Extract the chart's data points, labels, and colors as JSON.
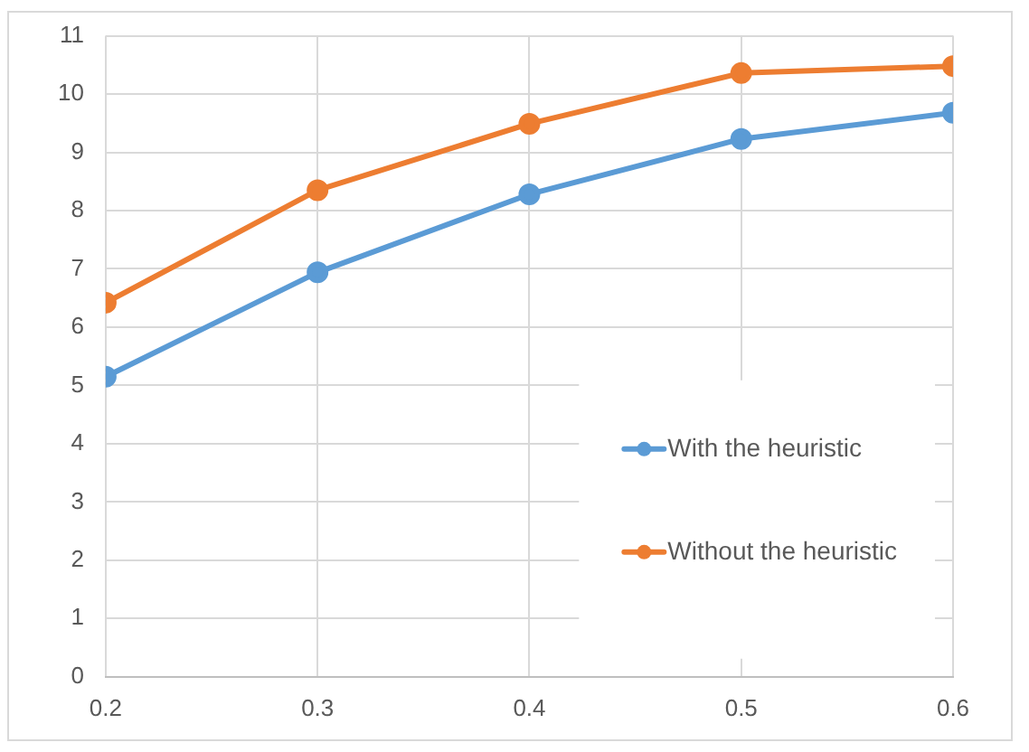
{
  "chart_data": {
    "type": "line",
    "x": [
      0.2,
      0.3,
      0.4,
      0.5,
      0.6
    ],
    "series": [
      {
        "name": "With the heuristic",
        "color": "#5b9bd5",
        "values": [
          5.15,
          6.94,
          8.28,
          9.23,
          9.68
        ]
      },
      {
        "name": "Without the heuristic",
        "color": "#ed7d31",
        "values": [
          6.42,
          8.35,
          9.49,
          10.36,
          10.48
        ]
      }
    ],
    "xlim": [
      0.2,
      0.6
    ],
    "xticks": [
      0.2,
      0.3,
      0.4,
      0.5,
      0.6
    ],
    "ylim": [
      0,
      11
    ],
    "yticks": [
      0,
      1,
      2,
      3,
      4,
      5,
      6,
      7,
      8,
      9,
      10,
      11
    ],
    "grid": true,
    "legend": "bottom right",
    "marker": "circle",
    "line_style": "solid"
  }
}
